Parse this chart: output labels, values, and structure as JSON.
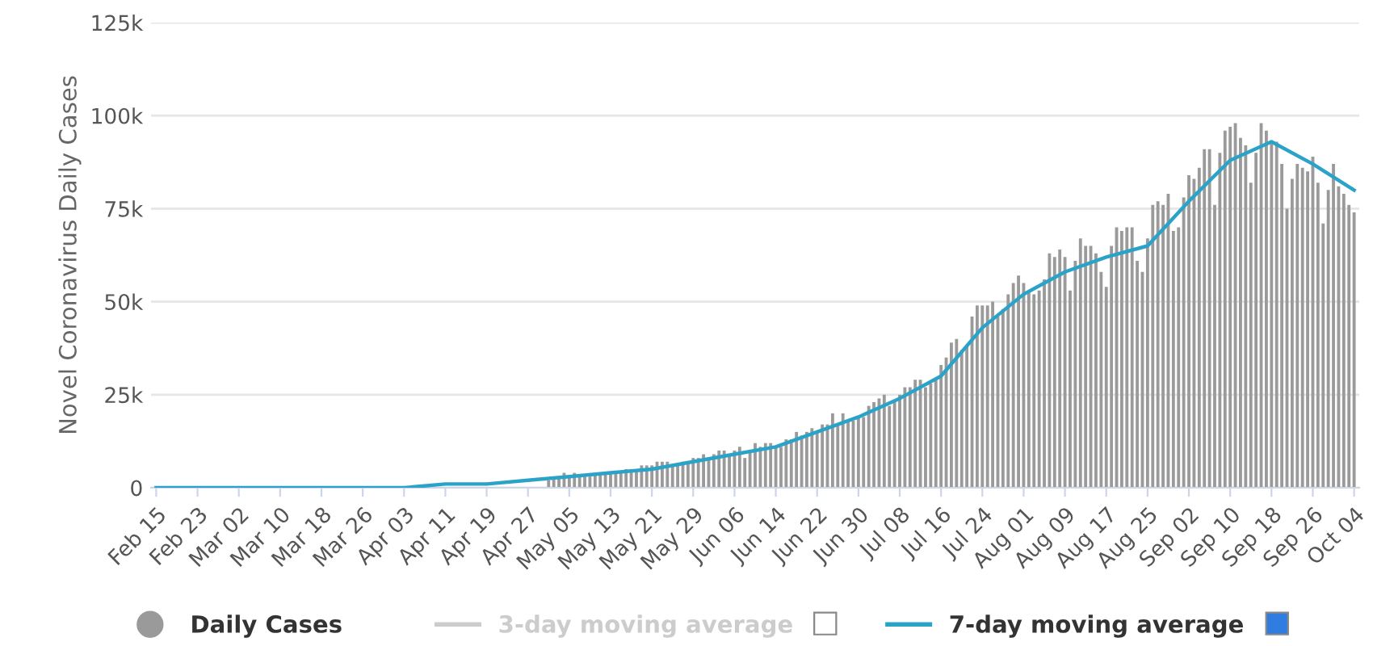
{
  "chart_data": {
    "type": "bar",
    "ylabel": "Novel Coronavirus Daily Cases",
    "categories": [
      "Feb 15",
      null,
      null,
      null,
      null,
      null,
      null,
      null,
      "Feb 23",
      null,
      null,
      null,
      null,
      null,
      null,
      null,
      "Mar 02",
      null,
      null,
      null,
      null,
      null,
      null,
      null,
      "Mar 10",
      null,
      null,
      null,
      null,
      null,
      null,
      null,
      "Mar 18",
      null,
      null,
      null,
      null,
      null,
      null,
      null,
      "Mar 26",
      null,
      null,
      null,
      null,
      null,
      null,
      null,
      "Apr 03",
      null,
      null,
      null,
      null,
      null,
      null,
      null,
      "Apr 11",
      null,
      null,
      null,
      null,
      null,
      null,
      null,
      "Apr 19",
      null,
      null,
      null,
      null,
      null,
      null,
      null,
      "Apr 27",
      null,
      null,
      null,
      null,
      null,
      null,
      null,
      "May 05",
      null,
      null,
      null,
      null,
      null,
      null,
      null,
      "May 13",
      null,
      null,
      null,
      null,
      null,
      null,
      null,
      "May 21",
      null,
      null,
      null,
      null,
      null,
      null,
      null,
      "May 29",
      null,
      null,
      null,
      null,
      null,
      null,
      null,
      "Jun 06",
      null,
      null,
      null,
      null,
      null,
      null,
      null,
      "Jun 14",
      null,
      null,
      null,
      null,
      null,
      null,
      null,
      "Jun 22",
      null,
      null,
      null,
      null,
      null,
      null,
      null,
      "Jun 30",
      null,
      null,
      null,
      null,
      null,
      null,
      null,
      "Jul 08",
      null,
      null,
      null,
      null,
      null,
      null,
      null,
      "Jul 16",
      null,
      null,
      null,
      null,
      null,
      null,
      null,
      "Jul 24",
      null,
      null,
      null,
      null,
      null,
      null,
      null,
      "Aug 01",
      null,
      null,
      null,
      null,
      null,
      null,
      null,
      "Aug 09",
      null,
      null,
      null,
      null,
      null,
      null,
      null,
      "Aug 17",
      null,
      null,
      null,
      null,
      null,
      null,
      null,
      "Aug 25",
      null,
      null,
      null,
      null,
      null,
      null,
      null,
      "Sep 02",
      null,
      null,
      null,
      null,
      null,
      null,
      null,
      "Sep 10",
      null,
      null,
      null,
      null,
      null,
      null,
      null,
      "Sep 18",
      null,
      null,
      null,
      null,
      null,
      null,
      null,
      "Sep 26",
      null,
      null,
      null,
      null,
      null,
      null,
      null,
      "Oct 04"
    ],
    "ylim": [
      0,
      125000
    ],
    "yticks": [
      {
        "value": 0,
        "label": "0"
      },
      {
        "value": 25000,
        "label": "25k"
      },
      {
        "value": 50000,
        "label": "50k"
      },
      {
        "value": 75000,
        "label": "75k"
      },
      {
        "value": 100000,
        "label": "100k"
      },
      {
        "value": 125000,
        "label": "125k"
      }
    ],
    "grid": "y",
    "legend": "bottom",
    "series": [
      {
        "name": "Daily Cases",
        "color": "#9a9a9a",
        "values": [
          0,
          0,
          0,
          0,
          0,
          0,
          0,
          0,
          0,
          0,
          0,
          0,
          0,
          0,
          0,
          0,
          0,
          0,
          0,
          0,
          0,
          0,
          0,
          0,
          0,
          0,
          0,
          0,
          0,
          0,
          0,
          0,
          0,
          0,
          0,
          0,
          0,
          0,
          0,
          0,
          0,
          0,
          0,
          0,
          0,
          0,
          null,
          null,
          null,
          null,
          null,
          null,
          null,
          null,
          null,
          null,
          null,
          null,
          null,
          null,
          null,
          null,
          null,
          null,
          null,
          null,
          null,
          null,
          null,
          null,
          null,
          null,
          null,
          null,
          null,
          null,
          2000,
          3000,
          3000,
          4000,
          3000,
          4000,
          3000,
          3000,
          3000,
          4000,
          4000,
          4000,
          4000,
          4000,
          4000,
          5000,
          5000,
          5000,
          6000,
          6000,
          6000,
          7000,
          7000,
          7000,
          6000,
          6000,
          7000,
          7000,
          8000,
          8000,
          9000,
          8000,
          9000,
          10000,
          10000,
          9000,
          10000,
          11000,
          8000,
          10000,
          12000,
          11000,
          12000,
          12000,
          11000,
          11000,
          13000,
          13000,
          15000,
          14000,
          15000,
          16000,
          15000,
          17000,
          17000,
          20000,
          17000,
          20000,
          18000,
          18000,
          19000,
          19000,
          22000,
          23000,
          24000,
          25000,
          22000,
          23000,
          25000,
          27000,
          27000,
          29000,
          29000,
          27000,
          28000,
          29000,
          33000,
          35000,
          39000,
          40000,
          37000,
          38000,
          46000,
          49000,
          49000,
          49000,
          50000,
          46000,
          48000,
          52000,
          55000,
          57000,
          55000,
          53000,
          52000,
          53000,
          56000,
          63000,
          62000,
          64000,
          62000,
          53000,
          61000,
          67000,
          65000,
          65000,
          63000,
          58000,
          54000,
          65000,
          70000,
          69000,
          70000,
          70000,
          61000,
          58000,
          67000,
          76000,
          77000,
          76000,
          79000,
          69000,
          70000,
          78000,
          84000,
          83000,
          86000,
          91000,
          91000,
          76000,
          90000,
          96000,
          97000,
          98000,
          94000,
          92000,
          82000,
          90000,
          98000,
          96000,
          93000,
          93000,
          87000,
          75000,
          83000,
          87000,
          86000,
          85000,
          89000,
          82000,
          71000,
          80000,
          87000,
          81000,
          79000,
          76000,
          74000
        ]
      },
      {
        "name": "3-day moving average",
        "type": "line",
        "color": "#cccccc",
        "values": [
          null,
          null,
          null,
          null,
          null,
          null,
          null,
          null,
          null,
          null,
          null,
          null,
          null,
          null,
          null,
          null,
          null,
          null,
          null,
          null,
          null,
          null,
          null,
          null,
          null,
          null,
          null,
          null,
          null,
          null,
          null,
          null,
          null,
          null,
          null,
          null,
          null,
          null,
          null,
          null,
          null,
          null,
          null,
          null,
          null,
          null,
          null,
          null,
          null,
          null,
          null,
          null,
          null,
          null,
          null,
          null,
          null,
          null,
          null,
          null,
          null,
          null,
          null,
          null,
          null,
          null,
          null,
          null,
          null,
          null,
          null,
          null,
          null,
          null,
          null,
          null,
          null,
          null,
          null,
          null,
          null,
          null,
          null,
          null,
          null,
          null,
          null,
          null,
          null,
          null,
          null,
          null,
          null,
          null,
          null,
          null,
          null,
          null,
          null,
          null,
          null,
          null,
          null,
          null,
          null,
          null,
          null,
          null,
          null,
          null,
          null,
          null,
          null,
          null,
          null,
          null,
          null,
          null,
          null,
          null,
          null,
          null,
          null,
          null,
          null,
          null,
          null,
          null,
          null,
          null,
          null,
          null,
          null,
          null,
          null,
          null,
          null,
          null,
          null,
          null,
          null,
          null,
          null,
          null,
          null,
          null,
          null,
          null,
          null,
          null,
          null,
          null,
          null,
          null,
          null,
          null,
          null,
          null,
          null,
          null,
          null,
          null,
          null,
          null,
          null,
          null,
          null,
          null,
          null,
          null,
          null,
          null,
          null,
          null,
          null,
          null,
          null,
          null,
          null,
          null,
          null,
          null,
          null,
          null,
          null,
          null,
          null,
          null,
          null,
          null,
          null,
          null,
          null,
          null,
          null,
          null,
          null,
          null,
          null,
          null,
          null,
          null,
          null,
          null,
          null,
          null,
          null,
          null,
          null,
          null,
          null,
          null,
          null,
          null,
          null,
          null,
          null,
          null,
          null,
          null,
          null,
          null,
          null,
          null,
          null,
          null,
          null,
          null,
          null,
          null,
          null,
          null,
          null
        ]
      },
      {
        "name": "7-day moving average",
        "type": "line",
        "color": "#2ba3c8",
        "x": [
          "Feb 15",
          "Feb 23",
          "Mar 02",
          "Mar 10",
          "Mar 18",
          "Mar 26",
          "Apr 03",
          "Apr 11",
          "Apr 19",
          "Apr 27",
          "May 05",
          "May 13",
          "May 21",
          "May 29",
          "Jun 06",
          "Jun 14",
          "Jun 22",
          "Jun 30",
          "Jul 08",
          "Jul 16",
          "Jul 24",
          "Aug 01",
          "Aug 09",
          "Aug 17",
          "Aug 25",
          "Sep 02",
          "Sep 10",
          "Sep 18",
          "Sep 26",
          "Oct 04"
        ],
        "values": [
          0,
          0,
          0,
          0,
          0,
          0,
          0,
          1000,
          1000,
          2000,
          3000,
          4000,
          5000,
          7000,
          9000,
          11000,
          15000,
          19000,
          24000,
          30000,
          43000,
          52000,
          58000,
          62000,
          65000,
          77000,
          88000,
          93000,
          87000,
          80000
        ]
      }
    ]
  }
}
